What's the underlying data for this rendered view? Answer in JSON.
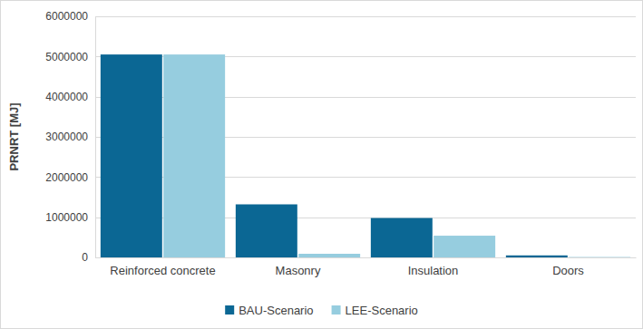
{
  "chart_data": {
    "type": "bar",
    "y_label": "PRNRT [MJ]",
    "categories": [
      "Reinforced concrete",
      "Masonry",
      "Insulation",
      "Doors"
    ],
    "series": [
      {
        "name": "BAU-Scenario",
        "color": "#0b6794",
        "values": [
          5050000,
          1320000,
          980000,
          50000
        ]
      },
      {
        "name": "LEE-Scenario",
        "color": "#96cddf",
        "values": [
          5050000,
          90000,
          540000,
          10000
        ]
      }
    ],
    "ylim": [
      0,
      6000000
    ],
    "yticks": [
      0,
      1000000,
      2000000,
      3000000,
      4000000,
      5000000,
      6000000
    ],
    "grid": true,
    "legend": "bottom"
  }
}
